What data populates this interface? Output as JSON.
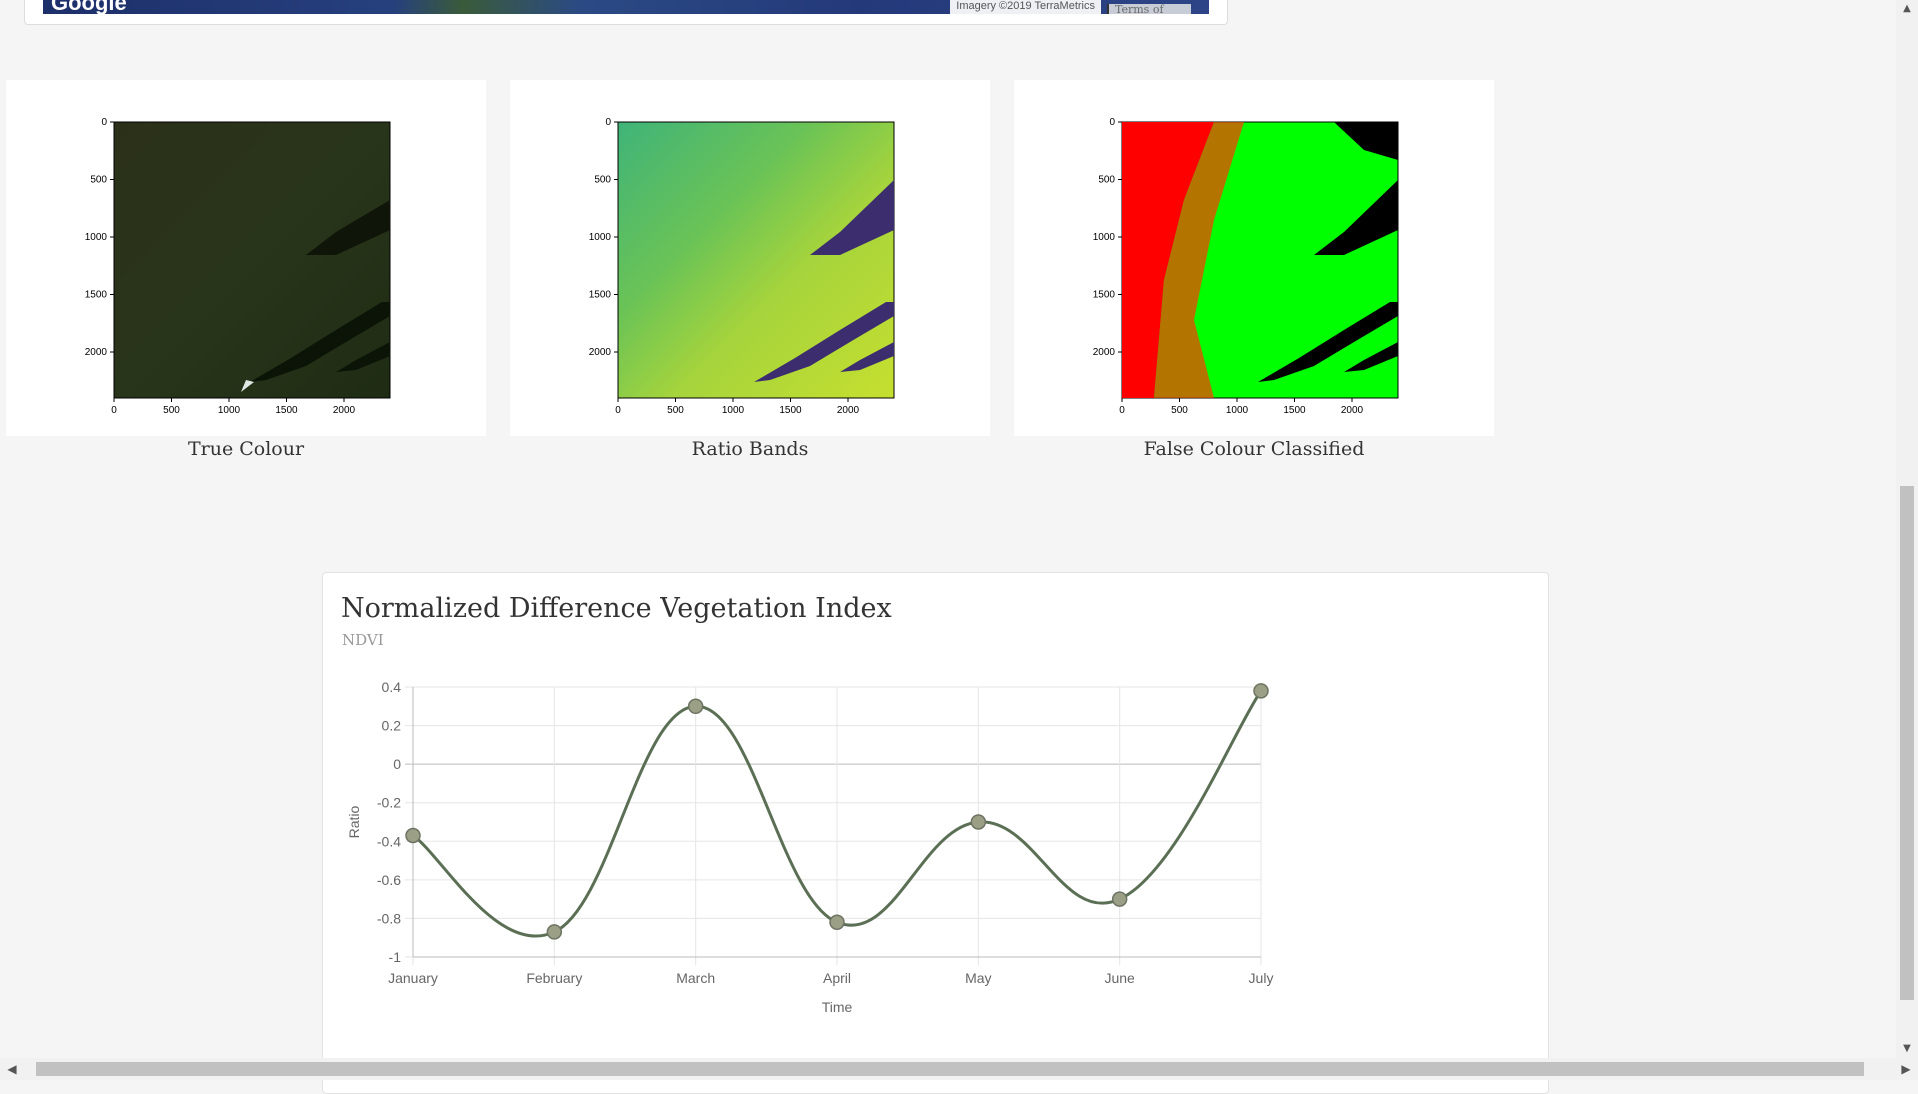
{
  "map": {
    "logo": "Google",
    "attribution": "Imagery ©2019 TerraMetrics",
    "terms": "Terms of Use"
  },
  "panels": [
    {
      "caption": "True Colour"
    },
    {
      "caption": "Ratio Bands"
    },
    {
      "caption": "False Colour Classified"
    }
  ],
  "panel_axis": {
    "y_ticks": [
      "0",
      "500",
      "1000",
      "1500",
      "2000"
    ],
    "x_ticks": [
      "0",
      "500",
      "1000",
      "1500",
      "2000"
    ]
  },
  "chart": {
    "title": "Normalized Difference Vegetation Index",
    "subtitle": "NDVI"
  },
  "chart_data": {
    "type": "line",
    "title": "Normalized Difference Vegetation Index",
    "subtitle": "NDVI",
    "xlabel": "Time",
    "ylabel": "Ratio",
    "categories": [
      "January",
      "February",
      "March",
      "April",
      "May",
      "June",
      "July"
    ],
    "series": [
      {
        "values": [
          -0.37,
          -0.87,
          0.3,
          -0.82,
          -0.3,
          -0.7,
          0.38
        ],
        "color": "#5b6f55",
        "point_color": "#9a9f86"
      }
    ],
    "ylim": [
      -1,
      0.4
    ],
    "y_ticks": [
      0.4,
      0.2,
      0,
      -0.2,
      -0.4,
      -0.6,
      -0.8,
      -1
    ],
    "y_tick_labels": [
      "0.4",
      "0.2",
      "0",
      "-0.2",
      "-0.4",
      "-0.6",
      "-0.8",
      "-1"
    ],
    "grid": true,
    "legend": "none"
  },
  "scrollbar": {
    "up": "▲",
    "down": "▼",
    "left": "◀",
    "right": "▶"
  }
}
